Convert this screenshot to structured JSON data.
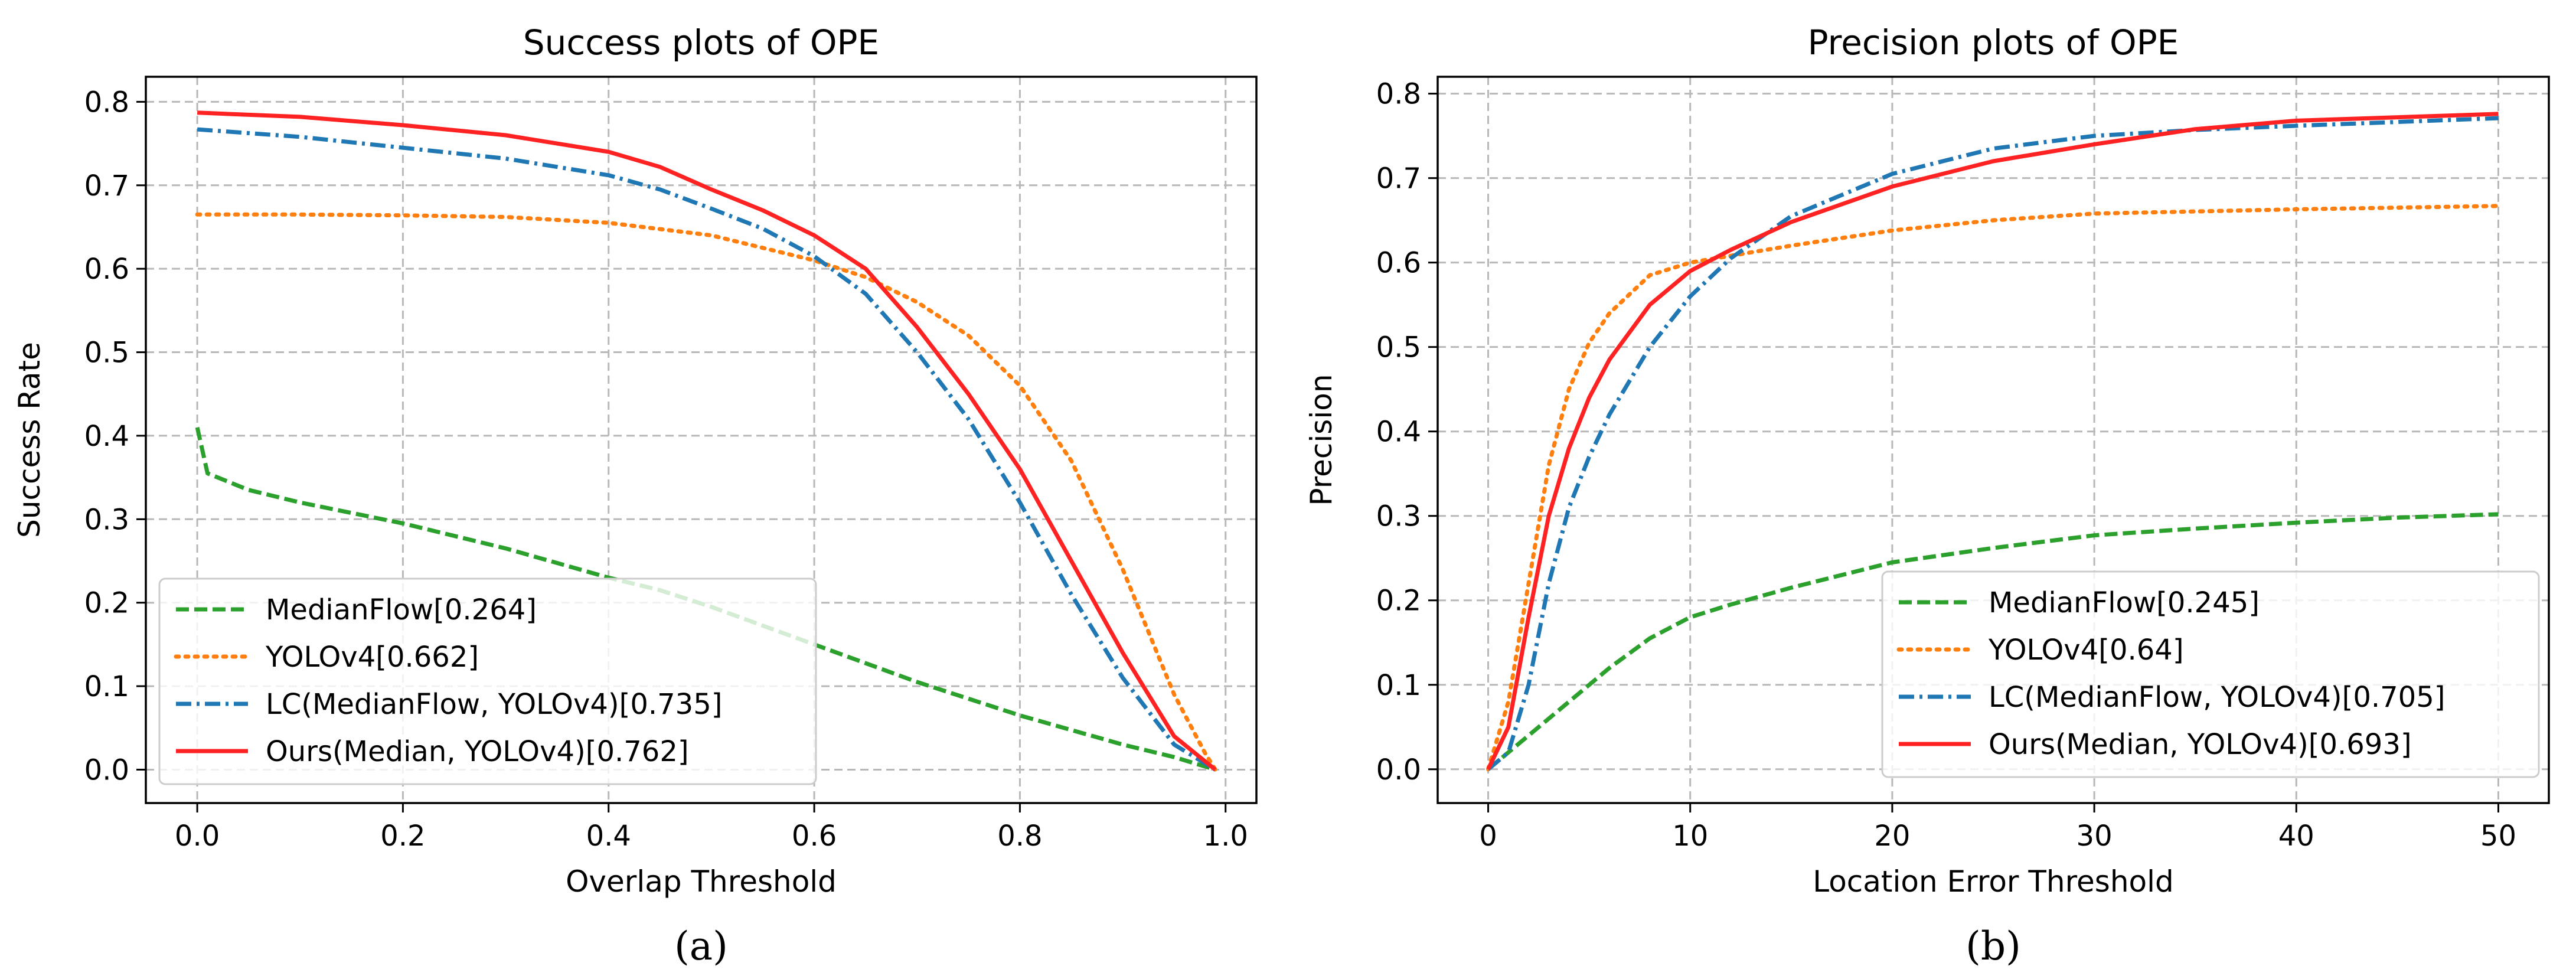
{
  "chart_data": [
    {
      "type": "line",
      "title": "Success plots of OPE",
      "xlabel": "Overlap Threshold",
      "ylabel": "Success Rate",
      "xlim": [
        -0.05,
        1.03
      ],
      "ylim": [
        -0.04,
        0.83
      ],
      "xticks": [
        0.0,
        0.2,
        0.4,
        0.6,
        0.8,
        1.0
      ],
      "xtick_labels": [
        "0.0",
        "0.2",
        "0.4",
        "0.6",
        "0.8",
        "1.0"
      ],
      "yticks": [
        0.0,
        0.1,
        0.2,
        0.3,
        0.4,
        0.5,
        0.6,
        0.7,
        0.8
      ],
      "ytick_labels": [
        "0.0",
        "0.1",
        "0.2",
        "0.3",
        "0.4",
        "0.5",
        "0.6",
        "0.7",
        "0.8"
      ],
      "grid": true,
      "legend_position": "lower-left",
      "caption": "(a)",
      "series": [
        {
          "name": "MedianFlow[0.264]",
          "color": "#2ca02c",
          "style": "dashed",
          "x": [
            0.0,
            0.01,
            0.05,
            0.1,
            0.2,
            0.3,
            0.4,
            0.45,
            0.5,
            0.6,
            0.7,
            0.8,
            0.9,
            0.95,
            0.99
          ],
          "y": [
            0.41,
            0.355,
            0.335,
            0.32,
            0.295,
            0.265,
            0.23,
            0.215,
            0.195,
            0.15,
            0.105,
            0.065,
            0.03,
            0.015,
            0.0
          ]
        },
        {
          "name": "YOLOv4[0.662]",
          "color": "#ff7f0e",
          "style": "dotted",
          "x": [
            0.0,
            0.1,
            0.2,
            0.3,
            0.4,
            0.5,
            0.55,
            0.6,
            0.65,
            0.7,
            0.75,
            0.8,
            0.85,
            0.9,
            0.95,
            0.98,
            0.99
          ],
          "y": [
            0.665,
            0.665,
            0.664,
            0.662,
            0.655,
            0.64,
            0.625,
            0.61,
            0.59,
            0.56,
            0.52,
            0.46,
            0.37,
            0.24,
            0.09,
            0.02,
            0.0
          ]
        },
        {
          "name": "LC(MedianFlow, YOLOv4)[0.735]",
          "color": "#1f77b4",
          "style": "dashdot",
          "x": [
            0.0,
            0.1,
            0.2,
            0.3,
            0.4,
            0.45,
            0.5,
            0.55,
            0.6,
            0.65,
            0.7,
            0.75,
            0.8,
            0.85,
            0.9,
            0.95,
            0.99
          ],
          "y": [
            0.767,
            0.758,
            0.745,
            0.732,
            0.712,
            0.695,
            0.672,
            0.648,
            0.615,
            0.57,
            0.5,
            0.42,
            0.32,
            0.21,
            0.11,
            0.03,
            0.0
          ]
        },
        {
          "name": "Ours(Median, YOLOv4)[0.762]",
          "color": "#ff2222",
          "style": "solid",
          "x": [
            0.0,
            0.1,
            0.2,
            0.3,
            0.35,
            0.4,
            0.45,
            0.5,
            0.55,
            0.6,
            0.65,
            0.7,
            0.75,
            0.8,
            0.85,
            0.9,
            0.95,
            0.99
          ],
          "y": [
            0.787,
            0.782,
            0.772,
            0.76,
            0.75,
            0.74,
            0.722,
            0.695,
            0.67,
            0.64,
            0.6,
            0.53,
            0.45,
            0.36,
            0.25,
            0.14,
            0.04,
            0.0
          ]
        }
      ]
    },
    {
      "type": "line",
      "title": "Precision plots of OPE",
      "xlabel": "Location Error Threshold",
      "ylabel": "Precision",
      "xlim": [
        -2.5,
        52.5
      ],
      "ylim": [
        -0.04,
        0.82
      ],
      "xticks": [
        0,
        10,
        20,
        30,
        40,
        50
      ],
      "xtick_labels": [
        "0",
        "10",
        "20",
        "30",
        "40",
        "50"
      ],
      "yticks": [
        0.0,
        0.1,
        0.2,
        0.3,
        0.4,
        0.5,
        0.6,
        0.7,
        0.8
      ],
      "ytick_labels": [
        "0.0",
        "0.1",
        "0.2",
        "0.3",
        "0.4",
        "0.5",
        "0.6",
        "0.7",
        "0.8"
      ],
      "grid": true,
      "legend_position": "lower-right",
      "caption": "(b)",
      "series": [
        {
          "name": "MedianFlow[0.245]",
          "color": "#2ca02c",
          "style": "dashed",
          "x": [
            0,
            2,
            4,
            6,
            8,
            10,
            12,
            15,
            20,
            25,
            30,
            35,
            40,
            45,
            50
          ],
          "y": [
            0.0,
            0.04,
            0.08,
            0.12,
            0.155,
            0.18,
            0.195,
            0.215,
            0.245,
            0.262,
            0.277,
            0.285,
            0.292,
            0.298,
            0.302
          ]
        },
        {
          "name": "YOLOv4[0.64]",
          "color": "#ff7f0e",
          "style": "dotted",
          "x": [
            0,
            1,
            2,
            3,
            4,
            5,
            6,
            8,
            10,
            12,
            15,
            20,
            25,
            30,
            40,
            50
          ],
          "y": [
            0.0,
            0.08,
            0.22,
            0.36,
            0.45,
            0.505,
            0.54,
            0.585,
            0.6,
            0.608,
            0.62,
            0.638,
            0.65,
            0.658,
            0.663,
            0.667
          ]
        },
        {
          "name": "LC(MedianFlow, YOLOv4)[0.705]",
          "color": "#1f77b4",
          "style": "dashdot",
          "x": [
            0,
            1,
            2,
            3,
            4,
            5,
            6,
            8,
            10,
            12,
            15,
            20,
            25,
            30,
            35,
            40,
            50
          ],
          "y": [
            0.0,
            0.02,
            0.1,
            0.22,
            0.31,
            0.37,
            0.42,
            0.5,
            0.56,
            0.605,
            0.655,
            0.705,
            0.735,
            0.75,
            0.757,
            0.762,
            0.771
          ]
        },
        {
          "name": "Ours(Median, YOLOv4)[0.693]",
          "color": "#ff2222",
          "style": "solid",
          "x": [
            0,
            1,
            2,
            3,
            4,
            5,
            6,
            8,
            10,
            12,
            15,
            20,
            25,
            30,
            35,
            40,
            50
          ],
          "y": [
            0.0,
            0.05,
            0.18,
            0.3,
            0.38,
            0.44,
            0.485,
            0.55,
            0.59,
            0.615,
            0.648,
            0.69,
            0.72,
            0.74,
            0.758,
            0.768,
            0.776
          ]
        }
      ]
    }
  ]
}
